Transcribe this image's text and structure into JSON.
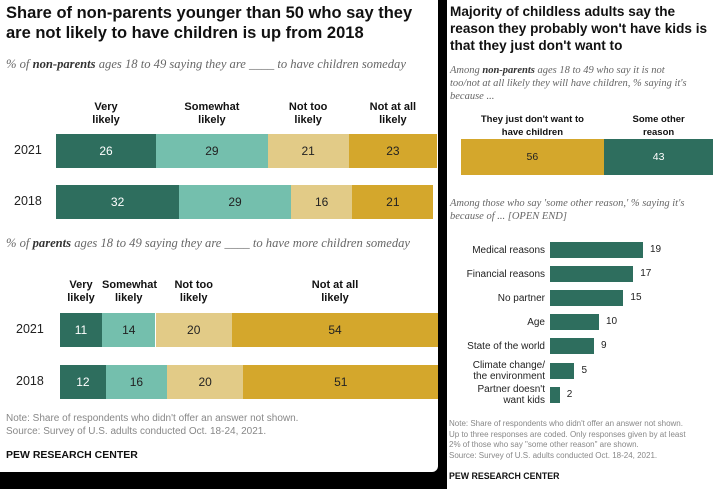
{
  "left": {
    "title": "Share of non-parents younger than 50 who say they are not likely to have children is up from 2018",
    "subtitle1": {
      "pre": "% of ",
      "bold": "non-parents",
      "post": " ages 18 to 49 saying they are ____ to have children someday"
    },
    "subtitle2": {
      "pre": "% of ",
      "bold": "parents",
      "post": " ages 18 to 49 saying they are ____ to have more children someday"
    },
    "note": "Note: Share of respondents who didn't offer an answer not shown.",
    "source": "Source: Survey of U.S. adults conducted Oct. 18-24, 2021.",
    "brand": "PEW RESEARCH CENTER"
  },
  "right": {
    "title": "Majority of childless adults say the reason they probably won't have kids is that they just don't want to",
    "subtitle1": {
      "pre": "Among ",
      "bold": "non-parents",
      "post1": " ages 18 to 49 who say it is not",
      "line2": "too/not at all likely they will have children, % saying it's",
      "line3": "because ..."
    },
    "subtitle2": {
      "line1": "Among those who say 'some other reason,' % saying it's",
      "line2": "because of ... [OPEN END]"
    },
    "note1": "Note: Share of respondents who didn't offer an answer not shown.",
    "note2": "Up to three responses are coded. Only responses given by at least",
    "note3": "2% of those who say \"some other reason\" are shown.",
    "note4": "Source: Survey of U.S. adults conducted Oct. 18-24, 2021.",
    "brand": "PEW RESEARCH CENTER"
  },
  "chart_data": [
    {
      "type": "bar",
      "orientation": "horizontal-stacked",
      "categories": [
        "2021",
        "2018"
      ],
      "series": [
        {
          "name": "Very likely",
          "values": [
            26,
            32
          ],
          "color": "#2e6e5e"
        },
        {
          "name": "Somewhat likely",
          "values": [
            29,
            29
          ],
          "color": "#74bfad"
        },
        {
          "name": "Not too likely",
          "values": [
            21,
            16
          ],
          "color": "#e2cb87"
        },
        {
          "name": "Not at all likely",
          "values": [
            23,
            21
          ],
          "color": "#d4a72c"
        }
      ]
    },
    {
      "type": "bar",
      "orientation": "horizontal-stacked",
      "categories": [
        "2021",
        "2018"
      ],
      "series": [
        {
          "name": "Very likely",
          "values": [
            11,
            12
          ],
          "color": "#2e6e5e"
        },
        {
          "name": "Somewhat likely",
          "values": [
            14,
            16
          ],
          "color": "#74bfad"
        },
        {
          "name": "Not too likely",
          "values": [
            20,
            20
          ],
          "color": "#e2cb87"
        },
        {
          "name": "Not at all likely",
          "values": [
            54,
            51
          ],
          "color": "#d4a72c"
        }
      ]
    },
    {
      "type": "bar",
      "orientation": "horizontal-stacked",
      "categories": [
        ""
      ],
      "series": [
        {
          "name": "They just don't want to have children",
          "values": [
            56
          ],
          "color": "#d4a72c"
        },
        {
          "name": "Some other reason",
          "values": [
            43
          ],
          "color": "#2e6e5e"
        }
      ]
    },
    {
      "type": "bar",
      "orientation": "horizontal",
      "categories": [
        "Medical reasons",
        "Financial reasons",
        "No partner",
        "Age",
        "State of the world",
        "Climate change/ the environment",
        "Partner doesn't want kids"
      ],
      "values": [
        19,
        17,
        15,
        10,
        9,
        5,
        2
      ],
      "color": "#2e6e5e"
    }
  ]
}
